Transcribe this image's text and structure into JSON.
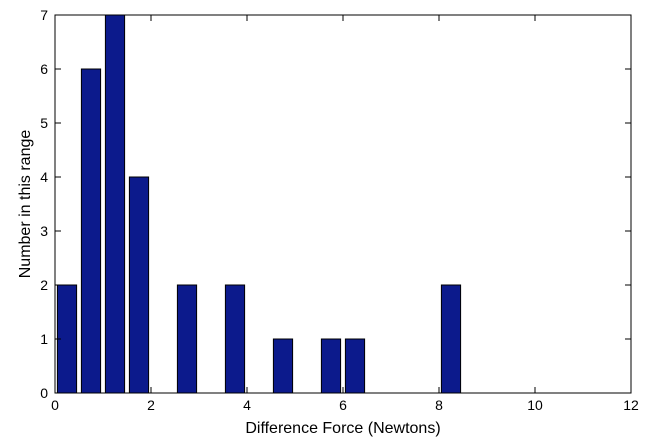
{
  "chart_data": {
    "type": "bar",
    "title": "",
    "xlabel": "Difference Force (Newtons)",
    "ylabel": "Number in this range",
    "xlim": [
      0,
      12
    ],
    "ylim": [
      0,
      7
    ],
    "x_ticks": [
      "0",
      "2",
      "4",
      "6",
      "8",
      "10",
      "12"
    ],
    "y_ticks": [
      "0",
      "1",
      "2",
      "3",
      "4",
      "5",
      "6",
      "7"
    ],
    "x": [
      0.25,
      0.75,
      1.25,
      1.75,
      2.75,
      3.75,
      4.75,
      5.75,
      6.25,
      8.25
    ],
    "values": [
      2,
      6,
      7,
      4,
      2,
      2,
      1,
      1,
      1,
      2
    ],
    "bar_width": 0.4,
    "grid": false,
    "legend": "none",
    "colors": {
      "bar_fill": "#0c1a8c",
      "bar_edge": "#000000",
      "axis": "#000000"
    }
  }
}
